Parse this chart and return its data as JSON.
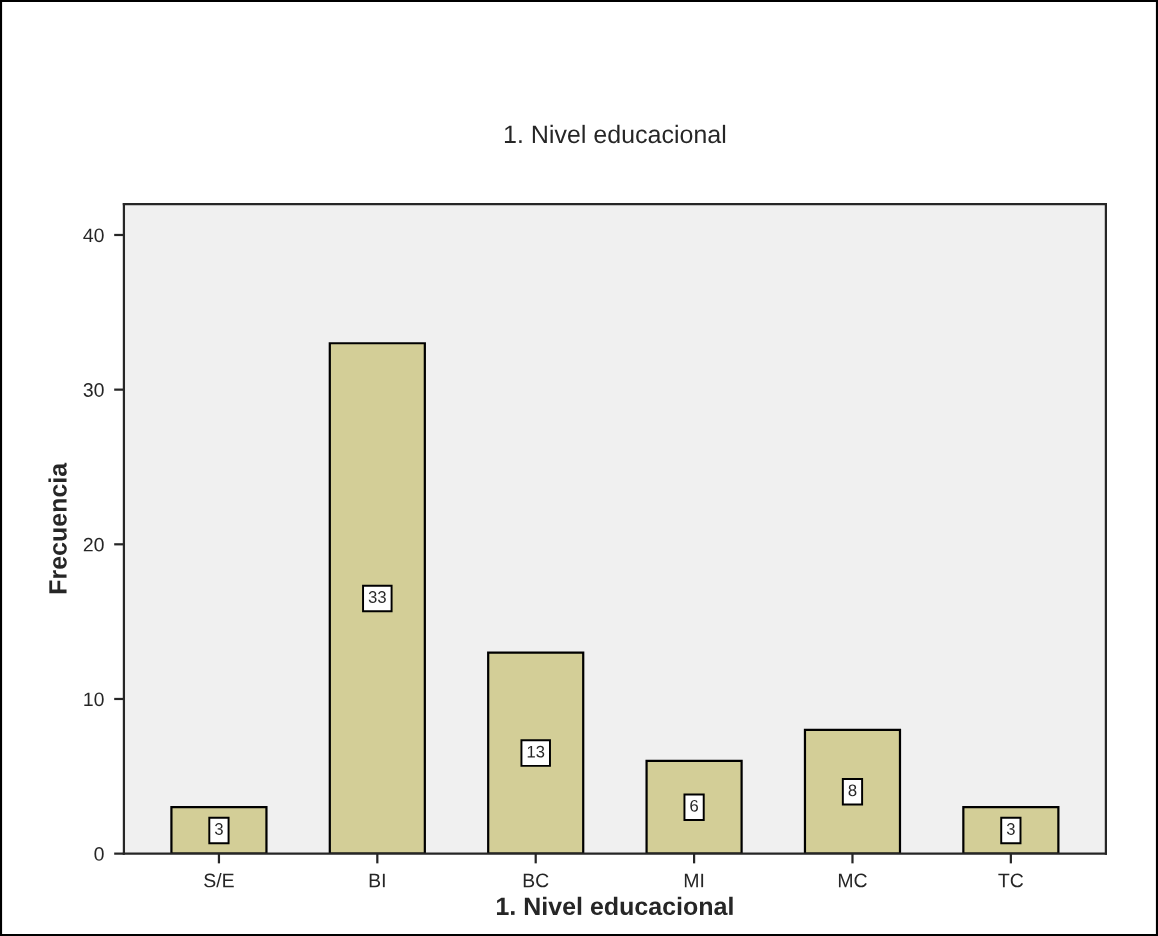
{
  "chart_data": {
    "type": "bar",
    "title": "1. Nivel educacional",
    "xlabel": "1. Nivel educacional",
    "ylabel": "Frecuencia",
    "categories": [
      "S/E",
      "BI",
      "BC",
      "MI",
      "MC",
      "TC"
    ],
    "values": [
      3,
      33,
      13,
      6,
      8,
      3
    ],
    "color": "#d3ce97",
    "ylim": [
      0,
      42
    ],
    "yticks": [
      0,
      10,
      20,
      30,
      40
    ],
    "data_labels": true,
    "grid": false,
    "legend": false
  }
}
